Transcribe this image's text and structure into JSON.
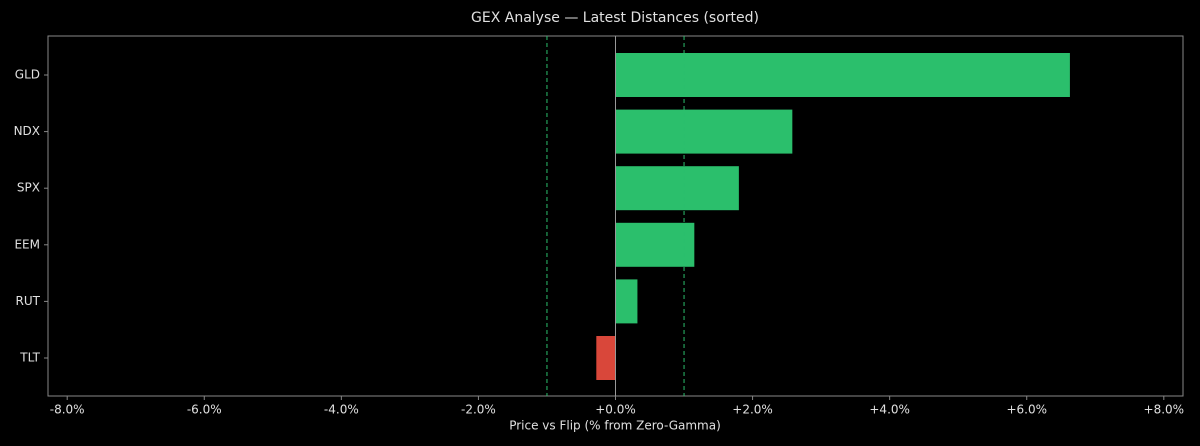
{
  "chart_data": {
    "type": "barh",
    "title": "GEX Analyse — Latest Distances (sorted)",
    "x_label": "Price vs Flip (% from Zero-Gamma)",
    "categories": [
      "GLD",
      "NDX",
      "SPX",
      "EEM",
      "RUT",
      "TLT"
    ],
    "values": [
      6.63,
      2.58,
      1.8,
      1.15,
      0.32,
      -0.28
    ],
    "colors": [
      "#2bbf6c",
      "#2bbf6c",
      "#2bbf6c",
      "#2bbf6c",
      "#2bbf6c",
      "#d9473a"
    ],
    "xlim": [
      -8.28,
      8.28
    ],
    "xticks": [
      {
        "value": -8,
        "label": "-8.0%"
      },
      {
        "value": -6,
        "label": "-6.0%"
      },
      {
        "value": -4,
        "label": "-4.0%"
      },
      {
        "value": -2,
        "label": "-2.0%"
      },
      {
        "value": 0,
        "label": "+0.0%"
      },
      {
        "value": 2,
        "label": "+2.0%"
      },
      {
        "value": 4,
        "label": "+4.0%"
      },
      {
        "value": 6,
        "label": "+6.0%"
      },
      {
        "value": 8,
        "label": "+8.0%"
      }
    ],
    "reference_lines": [
      -1,
      1
    ],
    "reference_color": "#2bbf6c",
    "zero_line_color": "#999999"
  }
}
